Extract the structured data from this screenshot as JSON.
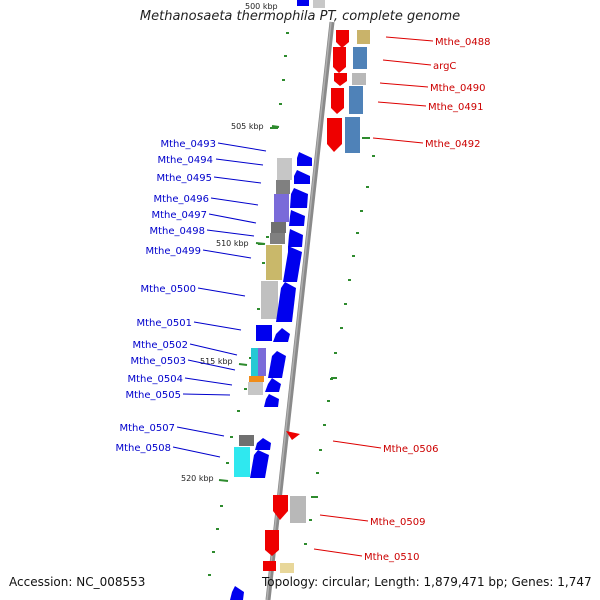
{
  "title": "Methanosaeta thermophila PT, complete genome",
  "footer": {
    "accession": "Accession: NC_008553",
    "summary": "Topology: circular; Length: 1,879,471 bp; Genes: 1,747"
  },
  "ticks": [
    {
      "label": "500 kbp"
    },
    {
      "label": "505 kbp"
    },
    {
      "label": "510 kbp"
    },
    {
      "label": "515 kbp"
    },
    {
      "label": "520 kbp"
    }
  ],
  "gene_labels_forward": [
    {
      "name": "Mthe_0488"
    },
    {
      "name": "argC"
    },
    {
      "name": "Mthe_0490"
    },
    {
      "name": "Mthe_0491"
    },
    {
      "name": "Mthe_0492"
    },
    {
      "name": "Mthe_0506"
    },
    {
      "name": "Mthe_0509"
    },
    {
      "name": "Mthe_0510"
    }
  ],
  "gene_labels_reverse": [
    {
      "name": "Mthe_0493"
    },
    {
      "name": "Mthe_0494"
    },
    {
      "name": "Mthe_0495"
    },
    {
      "name": "Mthe_0496"
    },
    {
      "name": "Mthe_0497"
    },
    {
      "name": "Mthe_0498"
    },
    {
      "name": "Mthe_0499"
    },
    {
      "name": "Mthe_0500"
    },
    {
      "name": "Mthe_0501"
    },
    {
      "name": "Mthe_0502"
    },
    {
      "name": "Mthe_0503"
    },
    {
      "name": "Mthe_0504"
    },
    {
      "name": "Mthe_0505"
    },
    {
      "name": "Mthe_0507"
    },
    {
      "name": "Mthe_0508"
    }
  ],
  "colors": {
    "forward_strand": "#ee0000",
    "reverse_strand": "#0000ee",
    "forward_label": "#cc0000",
    "reverse_label": "#0000cc",
    "backbone": "#808080",
    "gc_dots": "#2e8b2e",
    "tick": "#2e8b2e"
  }
}
